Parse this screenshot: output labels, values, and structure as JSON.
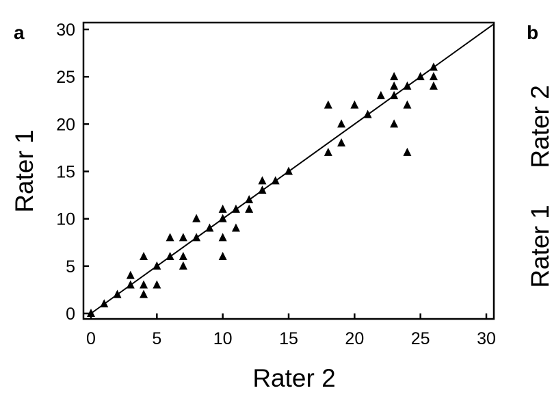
{
  "chart_data": {
    "type": "scatter",
    "panel_label": "a",
    "next_panel": {
      "panel_label": "b",
      "ylabel_parts": [
        "Rater 2",
        "Rater 1"
      ]
    },
    "xlabel": "Rater 2",
    "ylabel": "Rater 1",
    "xlim": [
      0,
      30
    ],
    "ylim": [
      0,
      30
    ],
    "xticks": [
      0,
      5,
      10,
      15,
      20,
      25,
      30
    ],
    "yticks": [
      0,
      5,
      10,
      15,
      20,
      25,
      30
    ],
    "grid": false,
    "marker": "triangle",
    "marker_color": "#000000",
    "reference_line": "y = x",
    "points": [
      [
        0,
        0
      ],
      [
        1,
        1
      ],
      [
        2,
        2
      ],
      [
        3,
        3
      ],
      [
        3,
        4
      ],
      [
        4,
        2
      ],
      [
        4,
        3
      ],
      [
        4,
        6
      ],
      [
        5,
        3
      ],
      [
        5,
        5
      ],
      [
        6,
        6
      ],
      [
        6,
        8
      ],
      [
        7,
        5
      ],
      [
        7,
        6
      ],
      [
        7,
        8
      ],
      [
        8,
        8
      ],
      [
        8,
        10
      ],
      [
        9,
        9
      ],
      [
        10,
        6
      ],
      [
        10,
        8
      ],
      [
        10,
        10
      ],
      [
        10,
        11
      ],
      [
        11,
        9
      ],
      [
        11,
        11
      ],
      [
        12,
        11
      ],
      [
        12,
        12
      ],
      [
        13,
        13
      ],
      [
        13,
        14
      ],
      [
        14,
        14
      ],
      [
        15,
        15
      ],
      [
        18,
        17
      ],
      [
        18,
        22
      ],
      [
        19,
        18
      ],
      [
        19,
        20
      ],
      [
        20,
        22
      ],
      [
        21,
        21
      ],
      [
        22,
        23
      ],
      [
        23,
        20
      ],
      [
        23,
        23
      ],
      [
        23,
        24
      ],
      [
        23,
        25
      ],
      [
        24,
        17
      ],
      [
        24,
        22
      ],
      [
        24,
        24
      ],
      [
        25,
        25
      ],
      [
        26,
        24
      ],
      [
        26,
        25
      ],
      [
        26,
        26
      ]
    ]
  }
}
